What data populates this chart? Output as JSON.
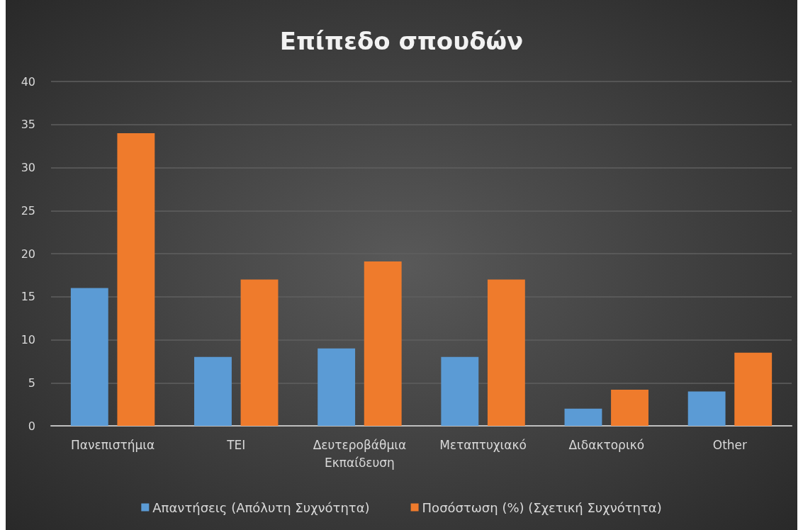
{
  "chart_data": {
    "type": "bar",
    "title": "Επίπεδο σπουδών",
    "categories": [
      "Πανεπιστήμια",
      "ΤΕΙ",
      "Δευτεροβάθμια Εκπαίδευση",
      "Μεταπτυχιακό",
      "Διδακτορικό",
      "Other"
    ],
    "series": [
      {
        "name": "Απαντήσεις (Απόλυτη Συχνότητα)",
        "color": "#5b9bd5",
        "values": [
          16,
          8,
          9,
          8,
          2,
          4
        ]
      },
      {
        "name": "Ποσόστωση (%) (Σχετική Συχνότητα)",
        "color": "#ef7b2c",
        "values": [
          34,
          17,
          19.1,
          17,
          4.2,
          8.5
        ]
      }
    ],
    "ylim": [
      0,
      40
    ],
    "yticks": [
      0,
      5,
      10,
      15,
      20,
      25,
      30,
      35,
      40
    ],
    "grid": "y",
    "legend": "bottom"
  }
}
